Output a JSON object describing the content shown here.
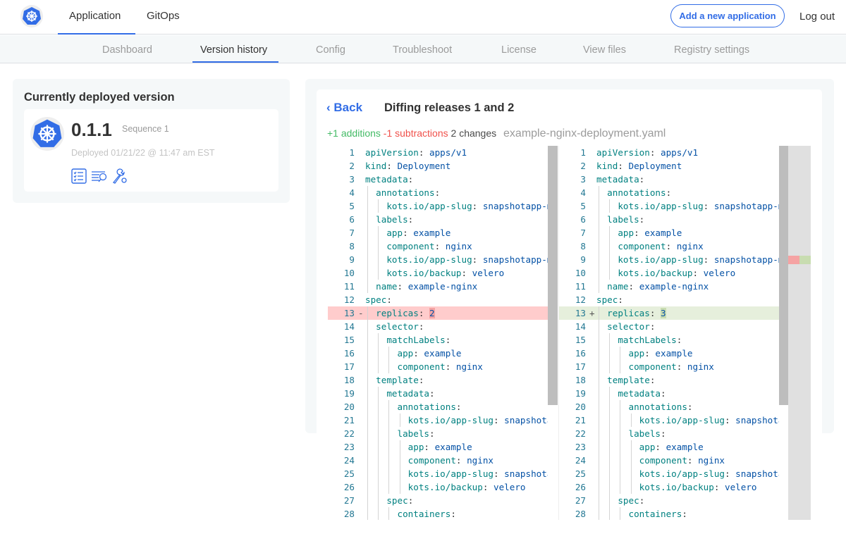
{
  "header": {
    "logo": "kubernetes-helm-logo",
    "tabs": [
      {
        "label": "Application",
        "active": true
      },
      {
        "label": "GitOps",
        "active": false
      }
    ],
    "add_button": "Add a new application",
    "logout": "Log out"
  },
  "subnav": {
    "tabs": [
      {
        "label": "Dashboard"
      },
      {
        "label": "Version history",
        "active": true
      },
      {
        "label": "Config"
      },
      {
        "label": "Troubleshoot"
      },
      {
        "label": "License"
      },
      {
        "label": "View files"
      },
      {
        "label": "Registry settings"
      }
    ]
  },
  "deployed": {
    "title": "Currently deployed version",
    "version": "0.1.1",
    "sequence": "Sequence 1",
    "deployed_at": "Deployed 01/21/22 @ 11:47 am EST",
    "icons": [
      "release-notes-icon",
      "view-logs-icon",
      "troubleshoot-icon"
    ]
  },
  "diff": {
    "back": "Back",
    "title": "Diffing releases 1 and 2",
    "additions": "+1 additions",
    "subtractions": "-1 subtractions",
    "changes": "2 changes",
    "file": "example-nginx-deployment.yaml",
    "colors": {
      "accent": "#326de6",
      "additions": "#44bb66",
      "subtractions": "#f0504a",
      "deleted_line": "#ffcccc",
      "inserted_line": "#e6efdc"
    },
    "left": [
      {
        "n": "1",
        "i": 0,
        "k": "apiVersion",
        "v": "apps/v1"
      },
      {
        "n": "2",
        "i": 0,
        "k": "kind",
        "v": "Deployment"
      },
      {
        "n": "3",
        "i": 0,
        "k": "metadata",
        "v": ""
      },
      {
        "n": "4",
        "i": 1,
        "k": "annotations",
        "v": ""
      },
      {
        "n": "5",
        "i": 2,
        "k": "kots.io/app-slug",
        "v": "snapshotapp-mu"
      },
      {
        "n": "6",
        "i": 1,
        "k": "labels",
        "v": ""
      },
      {
        "n": "7",
        "i": 2,
        "k": "app",
        "v": "example"
      },
      {
        "n": "8",
        "i": 2,
        "k": "component",
        "v": "nginx"
      },
      {
        "n": "9",
        "i": 2,
        "k": "kots.io/app-slug",
        "v": "snapshotapp-mu"
      },
      {
        "n": "10",
        "i": 2,
        "k": "kots.io/backup",
        "v": "velero"
      },
      {
        "n": "11",
        "i": 1,
        "k": "name",
        "v": "example-nginx"
      },
      {
        "n": "12",
        "i": 0,
        "k": "spec",
        "v": ""
      },
      {
        "n": "13",
        "i": 1,
        "k": "replicas",
        "v": "2",
        "mark": "-"
      },
      {
        "n": "14",
        "i": 1,
        "k": "selector",
        "v": ""
      },
      {
        "n": "15",
        "i": 2,
        "k": "matchLabels",
        "v": ""
      },
      {
        "n": "16",
        "i": 3,
        "k": "app",
        "v": "example"
      },
      {
        "n": "17",
        "i": 3,
        "k": "component",
        "v": "nginx"
      },
      {
        "n": "18",
        "i": 1,
        "k": "template",
        "v": ""
      },
      {
        "n": "19",
        "i": 2,
        "k": "metadata",
        "v": ""
      },
      {
        "n": "20",
        "i": 3,
        "k": "annotations",
        "v": ""
      },
      {
        "n": "21",
        "i": 4,
        "k": "kots.io/app-slug",
        "v": "snapshotap"
      },
      {
        "n": "22",
        "i": 3,
        "k": "labels",
        "v": ""
      },
      {
        "n": "23",
        "i": 4,
        "k": "app",
        "v": "example"
      },
      {
        "n": "24",
        "i": 4,
        "k": "component",
        "v": "nginx"
      },
      {
        "n": "25",
        "i": 4,
        "k": "kots.io/app-slug",
        "v": "snapshotap"
      },
      {
        "n": "26",
        "i": 4,
        "k": "kots.io/backup",
        "v": "velero"
      },
      {
        "n": "27",
        "i": 2,
        "k": "spec",
        "v": ""
      },
      {
        "n": "28",
        "i": 3,
        "k": "containers",
        "v": ""
      }
    ],
    "right": [
      {
        "n": "1",
        "i": 0,
        "k": "apiVersion",
        "v": "apps/v1"
      },
      {
        "n": "2",
        "i": 0,
        "k": "kind",
        "v": "Deployment"
      },
      {
        "n": "3",
        "i": 0,
        "k": "metadata",
        "v": ""
      },
      {
        "n": "4",
        "i": 1,
        "k": "annotations",
        "v": ""
      },
      {
        "n": "5",
        "i": 2,
        "k": "kots.io/app-slug",
        "v": "snapshotapp-mu"
      },
      {
        "n": "6",
        "i": 1,
        "k": "labels",
        "v": ""
      },
      {
        "n": "7",
        "i": 2,
        "k": "app",
        "v": "example"
      },
      {
        "n": "8",
        "i": 2,
        "k": "component",
        "v": "nginx"
      },
      {
        "n": "9",
        "i": 2,
        "k": "kots.io/app-slug",
        "v": "snapshotapp-mu"
      },
      {
        "n": "10",
        "i": 2,
        "k": "kots.io/backup",
        "v": "velero"
      },
      {
        "n": "11",
        "i": 1,
        "k": "name",
        "v": "example-nginx"
      },
      {
        "n": "12",
        "i": 0,
        "k": "spec",
        "v": ""
      },
      {
        "n": "13",
        "i": 1,
        "k": "replicas",
        "v": "3",
        "mark": "+"
      },
      {
        "n": "14",
        "i": 1,
        "k": "selector",
        "v": ""
      },
      {
        "n": "15",
        "i": 2,
        "k": "matchLabels",
        "v": ""
      },
      {
        "n": "16",
        "i": 3,
        "k": "app",
        "v": "example"
      },
      {
        "n": "17",
        "i": 3,
        "k": "component",
        "v": "nginx"
      },
      {
        "n": "18",
        "i": 1,
        "k": "template",
        "v": ""
      },
      {
        "n": "19",
        "i": 2,
        "k": "metadata",
        "v": ""
      },
      {
        "n": "20",
        "i": 3,
        "k": "annotations",
        "v": ""
      },
      {
        "n": "21",
        "i": 4,
        "k": "kots.io/app-slug",
        "v": "snapshotap"
      },
      {
        "n": "22",
        "i": 3,
        "k": "labels",
        "v": ""
      },
      {
        "n": "23",
        "i": 4,
        "k": "app",
        "v": "example"
      },
      {
        "n": "24",
        "i": 4,
        "k": "component",
        "v": "nginx"
      },
      {
        "n": "25",
        "i": 4,
        "k": "kots.io/app-slug",
        "v": "snapshotap"
      },
      {
        "n": "26",
        "i": 4,
        "k": "kots.io/backup",
        "v": "velero"
      },
      {
        "n": "27",
        "i": 2,
        "k": "spec",
        "v": ""
      },
      {
        "n": "28",
        "i": 3,
        "k": "containers",
        "v": ""
      }
    ]
  }
}
